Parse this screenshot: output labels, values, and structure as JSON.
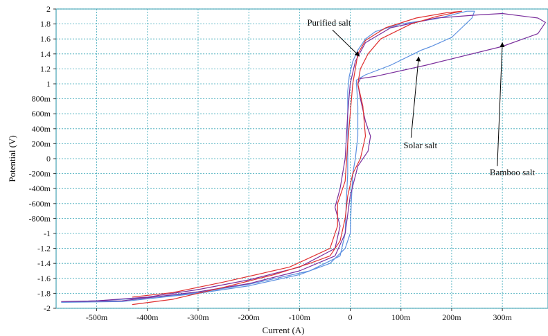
{
  "chart_data": {
    "type": "line",
    "title": "",
    "xlabel": "Current (A)",
    "ylabel": "Potential (V)",
    "xlim": [
      -0.58,
      0.39
    ],
    "ylim": [
      -2,
      2
    ],
    "grid": true,
    "x_ticks": [
      {
        "value": -0.5,
        "label": "-500m"
      },
      {
        "value": -0.4,
        "label": "-400m"
      },
      {
        "value": -0.3,
        "label": "-300m"
      },
      {
        "value": -0.2,
        "label": "-200m"
      },
      {
        "value": -0.1,
        "label": "-100m"
      },
      {
        "value": 0,
        "label": "0"
      },
      {
        "value": 0.1,
        "label": "100m"
      },
      {
        "value": 0.2,
        "label": "200m"
      },
      {
        "value": 0.3,
        "label": "300m"
      }
    ],
    "y_ticks": [
      {
        "value": 2,
        "label": "2"
      },
      {
        "value": 1.8,
        "label": "1.8"
      },
      {
        "value": 1.6,
        "label": "1.6"
      },
      {
        "value": 1.4,
        "label": "1.4"
      },
      {
        "value": 1.2,
        "label": "1.2"
      },
      {
        "value": 1,
        "label": "1"
      },
      {
        "value": 0.8,
        "label": "800m"
      },
      {
        "value": 0.6,
        "label": "600m"
      },
      {
        "value": 0.4,
        "label": "400m"
      },
      {
        "value": 0.2,
        "label": "200m"
      },
      {
        "value": 0,
        "label": "0"
      },
      {
        "value": -0.2,
        "label": "-200m"
      },
      {
        "value": -0.4,
        "label": "-400m"
      },
      {
        "value": -0.6,
        "label": "-600m"
      },
      {
        "value": -0.8,
        "label": "-800m"
      },
      {
        "value": -1,
        "label": "-1"
      },
      {
        "value": -1.2,
        "label": "-1.2"
      },
      {
        "value": -1.4,
        "label": "-1.4"
      },
      {
        "value": -1.6,
        "label": "-1.6"
      },
      {
        "value": -1.8,
        "label": "-1.8"
      },
      {
        "value": -2,
        "label": "-2"
      }
    ],
    "series": [
      {
        "color": "#5b8fe0",
        "points": [
          [
            -0.57,
            -1.92
          ],
          [
            -0.45,
            -1.91
          ],
          [
            -0.3,
            -1.8
          ],
          [
            -0.2,
            -1.7
          ],
          [
            -0.1,
            -1.55
          ],
          [
            -0.04,
            -1.4
          ],
          [
            -0.01,
            -1.2
          ],
          [
            0,
            -1.0
          ],
          [
            0.002,
            -0.6
          ],
          [
            0.005,
            -0.2
          ],
          [
            0.01,
            0.0
          ],
          [
            0.015,
            0.3
          ],
          [
            0.015,
            0.7
          ],
          [
            0.012,
            1.05
          ],
          [
            0.03,
            1.12
          ],
          [
            0.08,
            1.25
          ],
          [
            0.125,
            1.4
          ],
          [
            0.14,
            1.45
          ],
          [
            0.16,
            1.5
          ],
          [
            0.2,
            1.62
          ],
          [
            0.22,
            1.75
          ],
          [
            0.24,
            1.88
          ],
          [
            0.245,
            1.97
          ],
          [
            0.23,
            1.97
          ],
          [
            0.17,
            1.87
          ],
          [
            0.1,
            1.8
          ],
          [
            0.05,
            1.7
          ],
          [
            0.03,
            1.6
          ],
          [
            0.015,
            1.45
          ],
          [
            0.005,
            1.3
          ],
          [
            -0.002,
            1.1
          ],
          [
            -0.005,
            0.9
          ],
          [
            -0.005,
            0.6
          ],
          [
            -0.005,
            0.2
          ],
          [
            -0.005,
            -0.2
          ],
          [
            -0.008,
            -0.6
          ],
          [
            -0.01,
            -1.0
          ],
          [
            -0.02,
            -1.3
          ],
          [
            -0.08,
            -1.5
          ],
          [
            -0.2,
            -1.68
          ],
          [
            -0.3,
            -1.79
          ],
          [
            -0.4,
            -1.86
          ],
          [
            -0.5,
            -1.9
          ],
          [
            -0.57,
            -1.92
          ]
        ]
      },
      {
        "color": "#7a2e9c",
        "points": [
          [
            -0.57,
            -1.91
          ],
          [
            -0.45,
            -1.9
          ],
          [
            -0.3,
            -1.78
          ],
          [
            -0.2,
            -1.67
          ],
          [
            -0.1,
            -1.5
          ],
          [
            -0.03,
            -1.3
          ],
          [
            -0.01,
            -1.0
          ],
          [
            0,
            -0.5
          ],
          [
            0.015,
            -0.1
          ],
          [
            0.035,
            0.1
          ],
          [
            0.04,
            0.3
          ],
          [
            0.03,
            0.5
          ],
          [
            0.02,
            0.8
          ],
          [
            0.015,
            1.0
          ],
          [
            0.02,
            1.07
          ],
          [
            0.05,
            1.1
          ],
          [
            0.15,
            1.25
          ],
          [
            0.3,
            1.5
          ],
          [
            0.37,
            1.67
          ],
          [
            0.385,
            1.82
          ],
          [
            0.37,
            1.88
          ],
          [
            0.3,
            1.94
          ],
          [
            0.25,
            1.92
          ],
          [
            0.17,
            1.88
          ],
          [
            0.08,
            1.75
          ],
          [
            0.03,
            1.55
          ],
          [
            0.01,
            1.3
          ],
          [
            0,
            1.0
          ],
          [
            -0.005,
            0.6
          ],
          [
            -0.01,
            0.0
          ],
          [
            -0.02,
            -0.4
          ],
          [
            -0.03,
            -0.65
          ],
          [
            -0.02,
            -0.9
          ],
          [
            -0.03,
            -1.2
          ],
          [
            -0.1,
            -1.45
          ],
          [
            -0.2,
            -1.62
          ],
          [
            -0.3,
            -1.75
          ],
          [
            -0.4,
            -1.85
          ],
          [
            -0.5,
            -1.9
          ],
          [
            -0.57,
            -1.91
          ]
        ]
      },
      {
        "color": "#e03030",
        "points": [
          [
            -0.43,
            -1.95
          ],
          [
            -0.35,
            -1.88
          ],
          [
            -0.25,
            -1.72
          ],
          [
            -0.15,
            -1.55
          ],
          [
            -0.08,
            -1.4
          ],
          [
            -0.04,
            -1.3
          ],
          [
            -0.02,
            -1.1
          ],
          [
            -0.01,
            -0.8
          ],
          [
            -0.005,
            -0.5
          ],
          [
            0.005,
            -0.2
          ],
          [
            0.02,
            0.0
          ],
          [
            0.03,
            0.3
          ],
          [
            0.025,
            0.7
          ],
          [
            0.015,
            1.0
          ],
          [
            0.02,
            1.2
          ],
          [
            0.035,
            1.4
          ],
          [
            0.06,
            1.6
          ],
          [
            0.12,
            1.8
          ],
          [
            0.17,
            1.9
          ],
          [
            0.22,
            1.97
          ],
          [
            0.19,
            1.95
          ],
          [
            0.13,
            1.88
          ],
          [
            0.07,
            1.75
          ],
          [
            0.03,
            1.58
          ],
          [
            0.015,
            1.4
          ],
          [
            0.01,
            1.2
          ],
          [
            0.005,
            1.0
          ],
          [
            0,
            0.6
          ],
          [
            -0.005,
            0.2
          ],
          [
            -0.01,
            -0.3
          ],
          [
            -0.025,
            -0.6
          ],
          [
            -0.025,
            -0.9
          ],
          [
            -0.04,
            -1.2
          ],
          [
            -0.12,
            -1.45
          ],
          [
            -0.25,
            -1.65
          ],
          [
            -0.35,
            -1.79
          ],
          [
            -0.43,
            -1.85
          ]
        ]
      }
    ],
    "annotations": [
      {
        "text": "Purified salt",
        "label_at": [
          -0.085,
          1.78
        ],
        "arrow_from": [
          -0.035,
          1.72
        ],
        "arrow_to": [
          0.018,
          1.37
        ]
      },
      {
        "text": "Solar salt",
        "label_at": [
          0.105,
          0.14
        ],
        "arrow_from": [
          0.12,
          0.28
        ],
        "arrow_to": [
          0.135,
          1.36
        ]
      },
      {
        "text": "Bamboo salt",
        "label_at": [
          0.275,
          -0.22
        ],
        "arrow_from": [
          0.29,
          -0.1
        ],
        "arrow_to": [
          0.3,
          1.55
        ]
      }
    ]
  }
}
